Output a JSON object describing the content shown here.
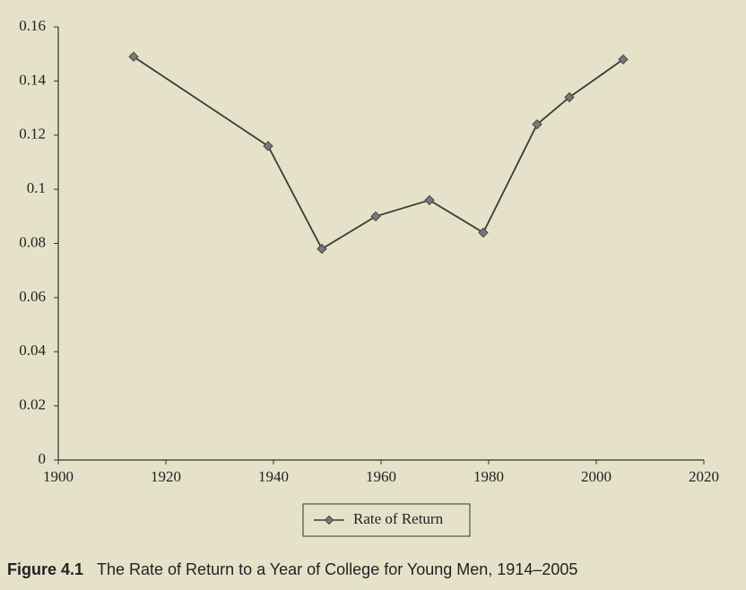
{
  "chart_data": {
    "type": "line",
    "x": [
      1914,
      1939,
      1949,
      1959,
      1969,
      1979,
      1989,
      1995,
      2005
    ],
    "series": [
      {
        "name": "Rate of Return",
        "color": "#3a3a3a",
        "values": [
          0.149,
          0.116,
          0.078,
          0.09,
          0.096,
          0.084,
          0.124,
          0.134,
          0.148
        ]
      }
    ],
    "xlim": [
      1900,
      2020
    ],
    "xticks": [
      1900,
      1920,
      1940,
      1960,
      1980,
      2000,
      2020
    ],
    "ylim": [
      0,
      0.16
    ],
    "yticks": [
      0,
      0.02,
      0.04,
      0.06,
      0.08,
      0.1,
      0.12,
      0.14,
      0.16
    ],
    "grid": false,
    "legend": "bottom",
    "figure_number": "Figure 4.1",
    "caption": "The Rate of Return to a Year of College for Young Men, 1914–2005"
  }
}
